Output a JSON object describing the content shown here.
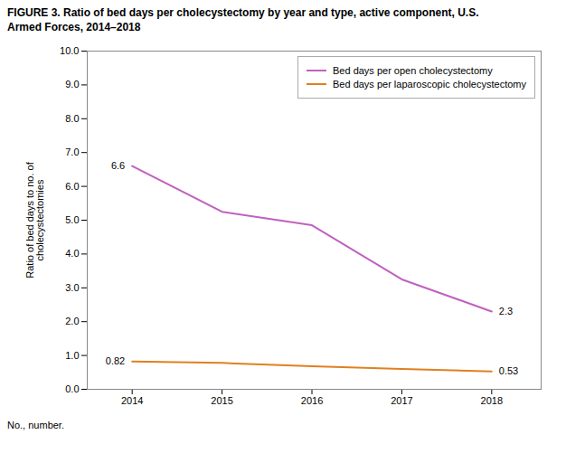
{
  "chart_data": {
    "type": "line",
    "title": "FIGURE 3. Ratio of bed days per cholecystectomy by year and type, active component, U.S.\nArmed Forces, 2014–2018",
    "caption": "No., number.",
    "ylabel": "Ratio of bed days to no. of\ncholecystectomies",
    "x": [
      2014,
      2015,
      2016,
      2017,
      2018
    ],
    "series": [
      {
        "name": "Bed days per open cholecystectomy",
        "color": "#c060c0",
        "values": [
          6.6,
          5.25,
          4.85,
          3.25,
          2.3
        ]
      },
      {
        "name": "Bed days per laparoscopic cholecystectomy",
        "color": "#e08020",
        "values": [
          0.82,
          0.78,
          0.68,
          0.6,
          0.53
        ]
      }
    ],
    "xlim": [
      2013.5,
      2018.55
    ],
    "xticks": [
      2014,
      2015,
      2016,
      2017,
      2018
    ],
    "ylim": [
      0,
      10.0
    ],
    "yticks": [
      {
        "value": 0.0,
        "label": "0.0"
      },
      {
        "value": 1.0,
        "label": "1.0"
      },
      {
        "value": 2.0,
        "label": "2.0"
      },
      {
        "value": 3.0,
        "label": "3.0"
      },
      {
        "value": 4.0,
        "label": "4.0"
      },
      {
        "value": 5.0,
        "label": "5.0"
      },
      {
        "value": 6.0,
        "label": "6.0"
      },
      {
        "value": 7.0,
        "label": "7.0"
      },
      {
        "value": 8.0,
        "label": "8.0"
      },
      {
        "value": 9.0,
        "label": "9.0"
      },
      {
        "value": 10.0,
        "label": "10.0"
      }
    ],
    "grid": false,
    "legend": "upper right",
    "annotations": [
      {
        "text": "6.6",
        "x": 2014,
        "y": 6.6
      },
      {
        "text": "0.82",
        "x": 2014,
        "y": 0.82
      },
      {
        "text": "2.3",
        "x": 2018,
        "y": 2.3
      },
      {
        "text": "0.53",
        "x": 2018,
        "y": 0.53
      }
    ]
  }
}
